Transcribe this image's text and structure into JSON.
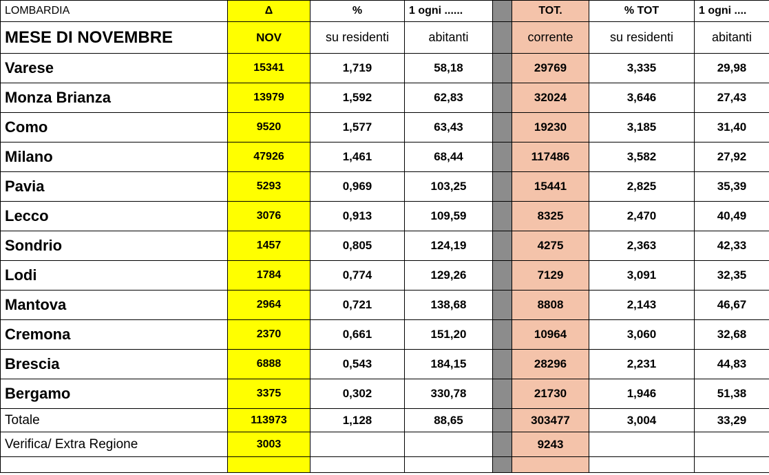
{
  "header": {
    "row1": [
      "LOMBARDIA",
      "Δ",
      "%",
      "1 ogni ......",
      "TOT.",
      "% TOT",
      "1 ogni ...."
    ],
    "row2": [
      "MESE DI NOVEMBRE",
      "NOV",
      "su residenti",
      "abitanti",
      "corrente",
      "su residenti",
      "abitanti"
    ]
  },
  "table": {
    "rows": [
      {
        "name": "Varese",
        "nov": "15341",
        "pct": "1,719",
        "ogni": "58,18",
        "tot": "29769",
        "pct_tot": "3,335",
        "ogni_tot": "29,98"
      },
      {
        "name": "Monza Brianza",
        "nov": "13979",
        "pct": "1,592",
        "ogni": "62,83",
        "tot": "32024",
        "pct_tot": "3,646",
        "ogni_tot": "27,43"
      },
      {
        "name": "Como",
        "nov": "9520",
        "pct": "1,577",
        "ogni": "63,43",
        "tot": "19230",
        "pct_tot": "3,185",
        "ogni_tot": "31,40"
      },
      {
        "name": "Milano",
        "nov": "47926",
        "pct": "1,461",
        "ogni": "68,44",
        "tot": "117486",
        "pct_tot": "3,582",
        "ogni_tot": "27,92"
      },
      {
        "name": "Pavia",
        "nov": "5293",
        "pct": "0,969",
        "ogni": "103,25",
        "tot": "15441",
        "pct_tot": "2,825",
        "ogni_tot": "35,39"
      },
      {
        "name": "Lecco",
        "nov": "3076",
        "pct": "0,913",
        "ogni": "109,59",
        "tot": "8325",
        "pct_tot": "2,470",
        "ogni_tot": "40,49"
      },
      {
        "name": "Sondrio",
        "nov": "1457",
        "pct": "0,805",
        "ogni": "124,19",
        "tot": "4275",
        "pct_tot": "2,363",
        "ogni_tot": "42,33"
      },
      {
        "name": "Lodi",
        "nov": "1784",
        "pct": "0,774",
        "ogni": "129,26",
        "tot": "7129",
        "pct_tot": "3,091",
        "ogni_tot": "32,35"
      },
      {
        "name": "Mantova",
        "nov": "2964",
        "pct": "0,721",
        "ogni": "138,68",
        "tot": "8808",
        "pct_tot": "2,143",
        "ogni_tot": "46,67"
      },
      {
        "name": "Cremona",
        "nov": "2370",
        "pct": "0,661",
        "ogni": "151,20",
        "tot": "10964",
        "pct_tot": "3,060",
        "ogni_tot": "32,68"
      },
      {
        "name": "Brescia",
        "nov": "6888",
        "pct": "0,543",
        "ogni": "184,15",
        "tot": "28296",
        "pct_tot": "2,231",
        "ogni_tot": "44,83"
      },
      {
        "name": "Bergamo",
        "nov": "3375",
        "pct": "0,302",
        "ogni": "330,78",
        "tot": "21730",
        "pct_tot": "1,946",
        "ogni_tot": "51,38"
      },
      {
        "name": "Totale",
        "nov": "113973",
        "pct": "1,128",
        "ogni": "88,65",
        "tot": "303477",
        "pct_tot": "3,004",
        "ogni_tot": "33,29"
      },
      {
        "name": "Verifica/ Extra Regione",
        "nov": "3003",
        "tot": "9243"
      }
    ]
  }
}
